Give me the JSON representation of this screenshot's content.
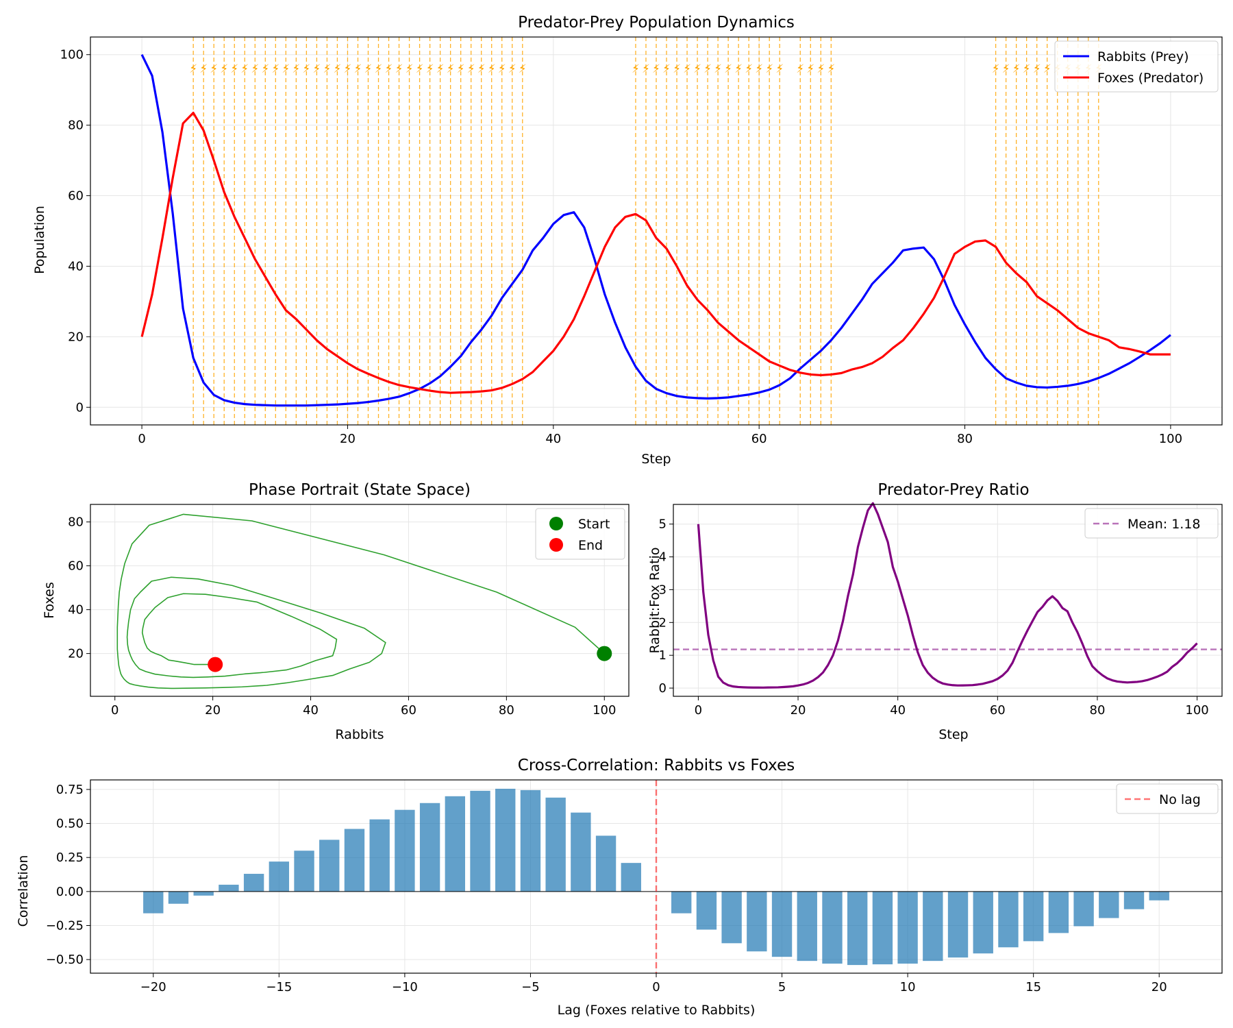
{
  "chart_data": [
    {
      "type": "line",
      "title": "Predator-Prey Population Dynamics",
      "xlabel": "Step",
      "ylabel": "Population",
      "xlim": [
        -5,
        105
      ],
      "ylim": [
        -5,
        105
      ],
      "xticks": [
        0,
        20,
        40,
        60,
        80,
        100
      ],
      "yticks": [
        0,
        20,
        40,
        60,
        80,
        100
      ],
      "grid": true,
      "legend_position": "top-right",
      "x": [
        0,
        1,
        2,
        3,
        4,
        5,
        6,
        7,
        8,
        9,
        10,
        11,
        12,
        13,
        14,
        15,
        16,
        17,
        18,
        19,
        20,
        21,
        22,
        23,
        24,
        25,
        26,
        27,
        28,
        29,
        30,
        31,
        32,
        33,
        34,
        35,
        36,
        37,
        38,
        39,
        40,
        41,
        42,
        43,
        44,
        45,
        46,
        47,
        48,
        49,
        50,
        51,
        52,
        53,
        54,
        55,
        56,
        57,
        58,
        59,
        60,
        61,
        62,
        63,
        64,
        65,
        66,
        67,
        68,
        69,
        70,
        71,
        72,
        73,
        74,
        75,
        76,
        77,
        78,
        79,
        80,
        81,
        82,
        83,
        84,
        85,
        86,
        87,
        88,
        89,
        90,
        91,
        92,
        93,
        94,
        95,
        96,
        97,
        98,
        99,
        100
      ],
      "series": [
        {
          "name": "Rabbits (Prey)",
          "color": "#0000ff",
          "values": [
            100,
            94,
            78,
            55,
            28,
            14,
            7,
            3.5,
            2,
            1.3,
            0.9,
            0.7,
            0.6,
            0.5,
            0.5,
            0.5,
            0.5,
            0.6,
            0.7,
            0.8,
            1,
            1.2,
            1.5,
            1.9,
            2.4,
            3,
            4,
            5.2,
            6.8,
            8.8,
            11.5,
            14.5,
            18.5,
            22,
            26,
            31,
            35,
            39,
            44.5,
            48,
            52,
            54.5,
            55.3,
            51,
            42,
            32,
            24,
            17,
            11.5,
            7.5,
            5.2,
            4,
            3.2,
            2.8,
            2.6,
            2.5,
            2.6,
            2.8,
            3.2,
            3.6,
            4.2,
            5,
            6.3,
            8.2,
            11,
            13.5,
            16,
            19,
            22.5,
            26.5,
            30.5,
            35,
            38,
            41,
            44.5,
            45,
            45.3,
            42,
            36,
            29,
            23.5,
            18.5,
            14,
            10.8,
            8.2,
            7,
            6.1,
            5.7,
            5.6,
            5.8,
            6.1,
            6.6,
            7.3,
            8.3,
            9.5,
            11,
            12.5,
            14.3,
            16.2,
            18.2,
            20.5
          ]
        },
        {
          "name": "Foxes (Predator)",
          "color": "#ff0000",
          "values": [
            20,
            32,
            48,
            65,
            80.5,
            83.5,
            78.5,
            70,
            61,
            54,
            48,
            42,
            37,
            32,
            27.5,
            25,
            22,
            19,
            16.5,
            14.5,
            12.5,
            10.8,
            9.5,
            8.3,
            7.2,
            6.3,
            5.7,
            5.2,
            4.7,
            4.3,
            4.1,
            4.2,
            4.3,
            4.5,
            4.8,
            5.5,
            6.6,
            8,
            10,
            13,
            16,
            20,
            25,
            31.5,
            38.5,
            45.5,
            51,
            54,
            54.8,
            53,
            48,
            45,
            40,
            34.5,
            30.5,
            27.5,
            24,
            21.5,
            19,
            17,
            15,
            13,
            11.8,
            10.6,
            9.8,
            9.3,
            9.1,
            9.3,
            9.7,
            10.7,
            11.4,
            12.5,
            14.3,
            16.8,
            19,
            22.5,
            26.5,
            31,
            37,
            43.5,
            45.5,
            47,
            47.3,
            45.5,
            41,
            38,
            35.5,
            31.5,
            29.5,
            27.5,
            25,
            22.5,
            21,
            20,
            19,
            17,
            16.5,
            15.8,
            15,
            15,
            15
          ]
        }
      ],
      "event_steps": [
        5,
        6,
        7,
        8,
        9,
        10,
        11,
        12,
        13,
        14,
        15,
        16,
        17,
        18,
        19,
        20,
        21,
        22,
        23,
        24,
        25,
        26,
        27,
        28,
        29,
        30,
        31,
        32,
        33,
        34,
        35,
        36,
        37,
        48,
        49,
        50,
        51,
        52,
        53,
        54,
        55,
        56,
        57,
        58,
        59,
        60,
        61,
        62,
        64,
        65,
        66,
        67,
        83,
        84,
        85,
        86,
        87,
        88,
        89,
        90,
        91,
        92,
        93
      ],
      "event_marker": "⚡",
      "event_color": "#ffa500"
    },
    {
      "type": "line",
      "title": "Phase Portrait (State Space)",
      "xlabel": "Rabbits",
      "ylabel": "Foxes",
      "xlim": [
        -5,
        105
      ],
      "ylim": [
        0.5,
        88
      ],
      "xticks": [
        0,
        20,
        40,
        60,
        80,
        100
      ],
      "yticks": [
        20,
        40,
        60,
        80
      ],
      "grid": true,
      "legend_position": "top-right",
      "trajectory_color": "#2ca02c",
      "start": {
        "label": "Start",
        "rabbits": 100,
        "foxes": 20,
        "color": "#008000"
      },
      "end": {
        "label": "End",
        "rabbits": 20.5,
        "foxes": 15,
        "color": "#ff0000"
      }
    },
    {
      "type": "line",
      "title": "Predator-Prey Ratio",
      "xlabel": "Step",
      "ylabel": "Rabbit:Fox Ratio",
      "xlim": [
        -5,
        105
      ],
      "ylim": [
        -0.25,
        5.6
      ],
      "xticks": [
        0,
        20,
        40,
        60,
        80,
        100
      ],
      "yticks": [
        0,
        1,
        2,
        3,
        4,
        5
      ],
      "grid": true,
      "legend_position": "top-right",
      "line_color": "#800080",
      "mean": {
        "label": "Mean: 1.18",
        "value": 1.18,
        "color": "#800080"
      }
    },
    {
      "type": "bar",
      "title": "Cross-Correlation: Rabbits vs Foxes",
      "xlabel": "Lag (Foxes relative to Rabbits)",
      "ylabel": "Correlation",
      "xlim": [
        -22.5,
        22.5
      ],
      "ylim": [
        -0.6,
        0.82
      ],
      "xticks": [
        -20,
        -15,
        -10,
        -5,
        0,
        5,
        10,
        15,
        20
      ],
      "xtick_labels": [
        "−20",
        "−15",
        "−10",
        "−5",
        "0",
        "5",
        "10",
        "15",
        "20"
      ],
      "yticks": [
        -0.5,
        -0.25,
        0,
        0.25,
        0.5,
        0.75
      ],
      "ytick_labels": [
        "−0.50",
        "−0.25",
        "0.00",
        "0.25",
        "0.50",
        "0.75"
      ],
      "grid": true,
      "legend_position": "top-right",
      "bar_color": "#1f77b4",
      "no_lag": {
        "label": "No lag",
        "x": 0,
        "color": "#ff0000"
      },
      "categories": [
        -20,
        -19,
        -18,
        -17,
        -16,
        -15,
        -14,
        -13,
        -12,
        -11,
        -10,
        -9,
        -8,
        -7,
        -6,
        -5,
        -4,
        -3,
        -2,
        -1,
        0,
        1,
        2,
        3,
        4,
        5,
        6,
        7,
        8,
        9,
        10,
        11,
        12,
        13,
        14,
        15,
        16,
        17,
        18,
        19,
        20
      ],
      "values": [
        -0.16,
        -0.09,
        -0.03,
        0.05,
        0.13,
        0.22,
        0.3,
        0.38,
        0.46,
        0.53,
        0.6,
        0.65,
        0.7,
        0.74,
        0.755,
        0.745,
        0.69,
        0.58,
        0.41,
        0.21,
        0,
        -0.16,
        -0.28,
        -0.38,
        -0.44,
        -0.48,
        -0.51,
        -0.53,
        -0.54,
        -0.535,
        -0.53,
        -0.51,
        -0.485,
        -0.455,
        -0.41,
        -0.365,
        -0.305,
        -0.255,
        -0.195,
        -0.13,
        -0.065
      ]
    }
  ]
}
